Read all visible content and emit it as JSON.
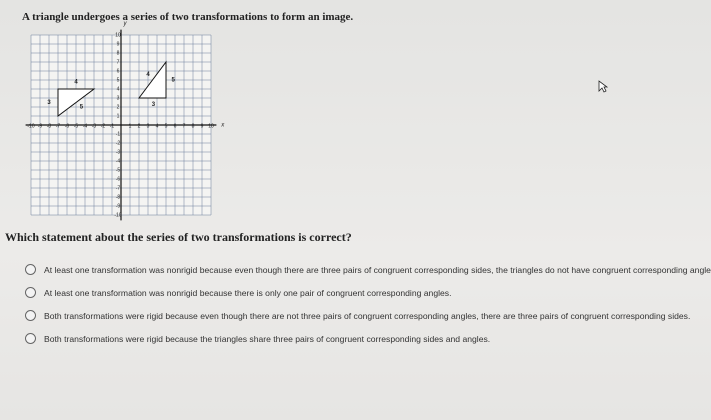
{
  "question": {
    "prompt": "A triangle undergoes a series of two transformations to form an image.",
    "graph": {
      "x_label": "x",
      "y_label": "y",
      "x_ticks": [
        -10,
        -9,
        -8,
        -7,
        -6,
        -5,
        -4,
        -3,
        -2,
        -1,
        1,
        2,
        3,
        4,
        5,
        6,
        7,
        8,
        9,
        10
      ],
      "y_ticks": [
        10,
        9,
        8,
        7,
        6,
        5,
        4,
        3,
        2,
        1,
        -1,
        -2,
        -3,
        -4,
        -5,
        -6,
        -7,
        -8,
        -9,
        -10
      ],
      "preimage_labels": [
        "4",
        "3",
        "5"
      ],
      "image_labels": [
        "4",
        "5",
        "3"
      ]
    },
    "stem": "Which statement about the series of two transformations is correct?",
    "options": [
      "At least one transformation was nonrigid because even though there are three pairs of congruent corresponding sides, the triangles do not have congruent corresponding angles.",
      "At least one transformation was nonrigid because there is only one pair of congruent corresponding angles.",
      "Both transformations were rigid because even though there are not three pairs of congruent corresponding angles, there are three pairs of congruent corresponding sides.",
      "Both transformations were rigid because the triangles share three pairs of congruent corresponding sides and angles."
    ]
  }
}
